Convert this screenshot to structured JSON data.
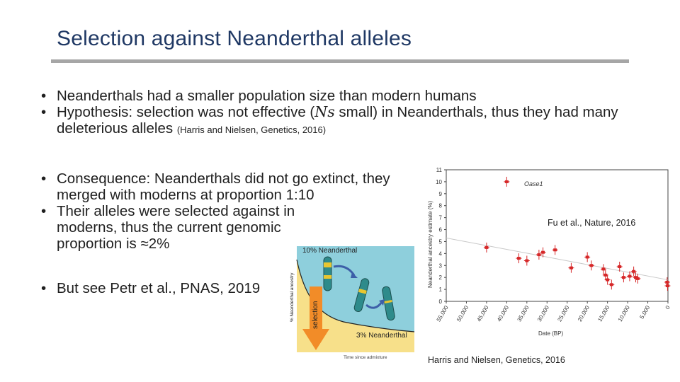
{
  "slide": {
    "title": "Selection against Neanderthal alleles",
    "bullets": [
      {
        "text": "Neanderthals had a smaller population size than modern humans"
      },
      {
        "pre": "Hypothesis: selection was not effective (",
        "sym": "Ns",
        "post": " small) in Neanderthals, thus they had many deleterious alleles",
        "cite": "(Harris and Nielsen, Genetics, 2016)"
      },
      {
        "text": "Consequence: Neanderthals did not go extinct, they merged with moderns at proportion 1:10"
      },
      {
        "text": "Their alleles were selected against in moderns, thus the current genomic proportion is ≈2%"
      },
      {
        "text": "But see Petr et al., PNAS, 2019"
      }
    ]
  },
  "illustration": {
    "top_label": "10% Neanderthal",
    "bottom_label": "3% Neanderthal",
    "arrow_label": "selection",
    "y_axis_label": "% Neanderthal ancestry",
    "x_axis_label": "Time since admixture",
    "caption": "Harris and Nielsen, Genetics, 2016",
    "colors": {
      "background": "#8ecfdc",
      "lower_area": "#f7e08a",
      "arrow": "#f28c28",
      "chromosome_teal": "#2e8b8b",
      "chromosome_yellow": "#e8c630",
      "curved_arrow": "#3d5fa8"
    }
  },
  "chart_data": {
    "type": "scatter",
    "xlabel": "Date (BP)",
    "ylabel": "Neanderthal ancestry estimate (%)",
    "xlim": [
      55000,
      0
    ],
    "ylim": [
      0,
      11
    ],
    "x_ticks": [
      "55,000",
      "50,000",
      "45,000",
      "40,000",
      "35,000",
      "30,000",
      "25,000",
      "20,000",
      "15,000",
      "10,000",
      "5,000",
      "0"
    ],
    "y_ticks": [
      "0",
      "1",
      "2",
      "3",
      "4",
      "5",
      "6",
      "7",
      "8",
      "9",
      "10",
      "11"
    ],
    "annotation": "Oase1",
    "source": "Fu et al., Nature, 2016",
    "point_color": "#d62728",
    "trend_line": [
      [
        55000,
        5.3
      ],
      [
        0,
        1.8
      ]
    ],
    "points": [
      {
        "x": 40000,
        "y": 10.0
      },
      {
        "x": 45000,
        "y": 4.5
      },
      {
        "x": 37000,
        "y": 3.6
      },
      {
        "x": 35000,
        "y": 3.4
      },
      {
        "x": 32000,
        "y": 3.9
      },
      {
        "x": 31000,
        "y": 4.1
      },
      {
        "x": 28000,
        "y": 4.3
      },
      {
        "x": 24000,
        "y": 2.8
      },
      {
        "x": 20000,
        "y": 3.7
      },
      {
        "x": 19000,
        "y": 3.0
      },
      {
        "x": 16000,
        "y": 2.7
      },
      {
        "x": 15500,
        "y": 2.2
      },
      {
        "x": 15000,
        "y": 1.8
      },
      {
        "x": 14000,
        "y": 1.4
      },
      {
        "x": 12000,
        "y": 2.9
      },
      {
        "x": 11000,
        "y": 2.0
      },
      {
        "x": 9500,
        "y": 2.1
      },
      {
        "x": 8500,
        "y": 2.5
      },
      {
        "x": 8000,
        "y": 2.0
      },
      {
        "x": 7500,
        "y": 1.9
      },
      {
        "x": 200,
        "y": 1.6
      },
      {
        "x": 100,
        "y": 1.3
      }
    ]
  }
}
